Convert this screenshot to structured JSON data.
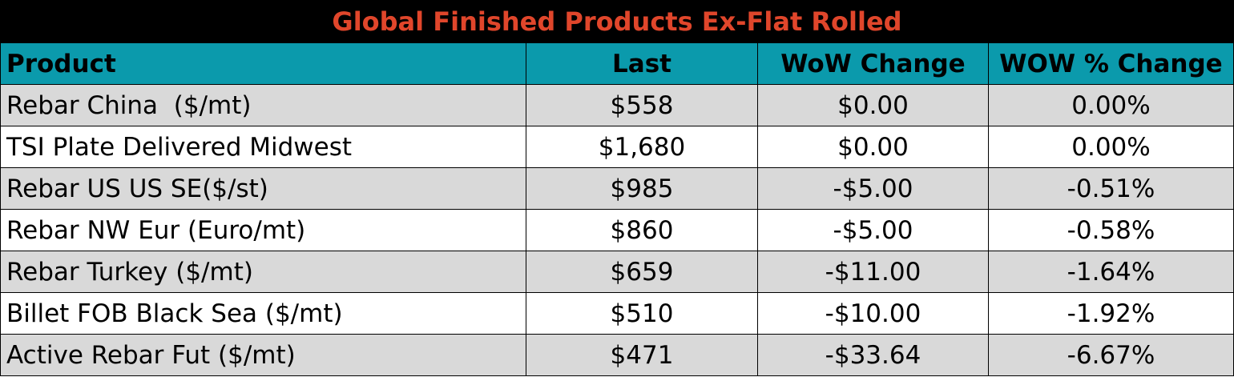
{
  "colors": {
    "title_bg": "#000000",
    "title_text": "#e0462b",
    "header_bg": "#0b9aac",
    "row_shaded": "#d9d9d9",
    "row_plain": "#ffffff"
  },
  "title": "Global Finished Products Ex-Flat Rolled",
  "columns": [
    "Product",
    "Last",
    "WoW Change",
    "WOW % Change"
  ],
  "rows": [
    {
      "product": "Rebar China  ($/mt)",
      "last": "$558",
      "wow": "$0.00",
      "wow_pct": "0.00%",
      "shaded": true
    },
    {
      "product": "TSI Plate Delivered Midwest",
      "last": "$1,680",
      "wow": "$0.00",
      "wow_pct": "0.00%",
      "shaded": false
    },
    {
      "product": "Rebar US US SE($/st)",
      "last": "$985",
      "wow": "-$5.00",
      "wow_pct": "-0.51%",
      "shaded": true
    },
    {
      "product": "Rebar NW Eur (Euro/mt)",
      "last": "$860",
      "wow": "-$5.00",
      "wow_pct": "-0.58%",
      "shaded": false
    },
    {
      "product": "Rebar Turkey ($/mt)",
      "last": "$659",
      "wow": "-$11.00",
      "wow_pct": "-1.64%",
      "shaded": true
    },
    {
      "product": "Billet FOB Black Sea ($/mt)",
      "last": "$510",
      "wow": "-$10.00",
      "wow_pct": "-1.92%",
      "shaded": false
    },
    {
      "product": "Active Rebar Fut ($/mt)",
      "last": "$471",
      "wow": "-$33.64",
      "wow_pct": "-6.67%",
      "shaded": true
    }
  ]
}
